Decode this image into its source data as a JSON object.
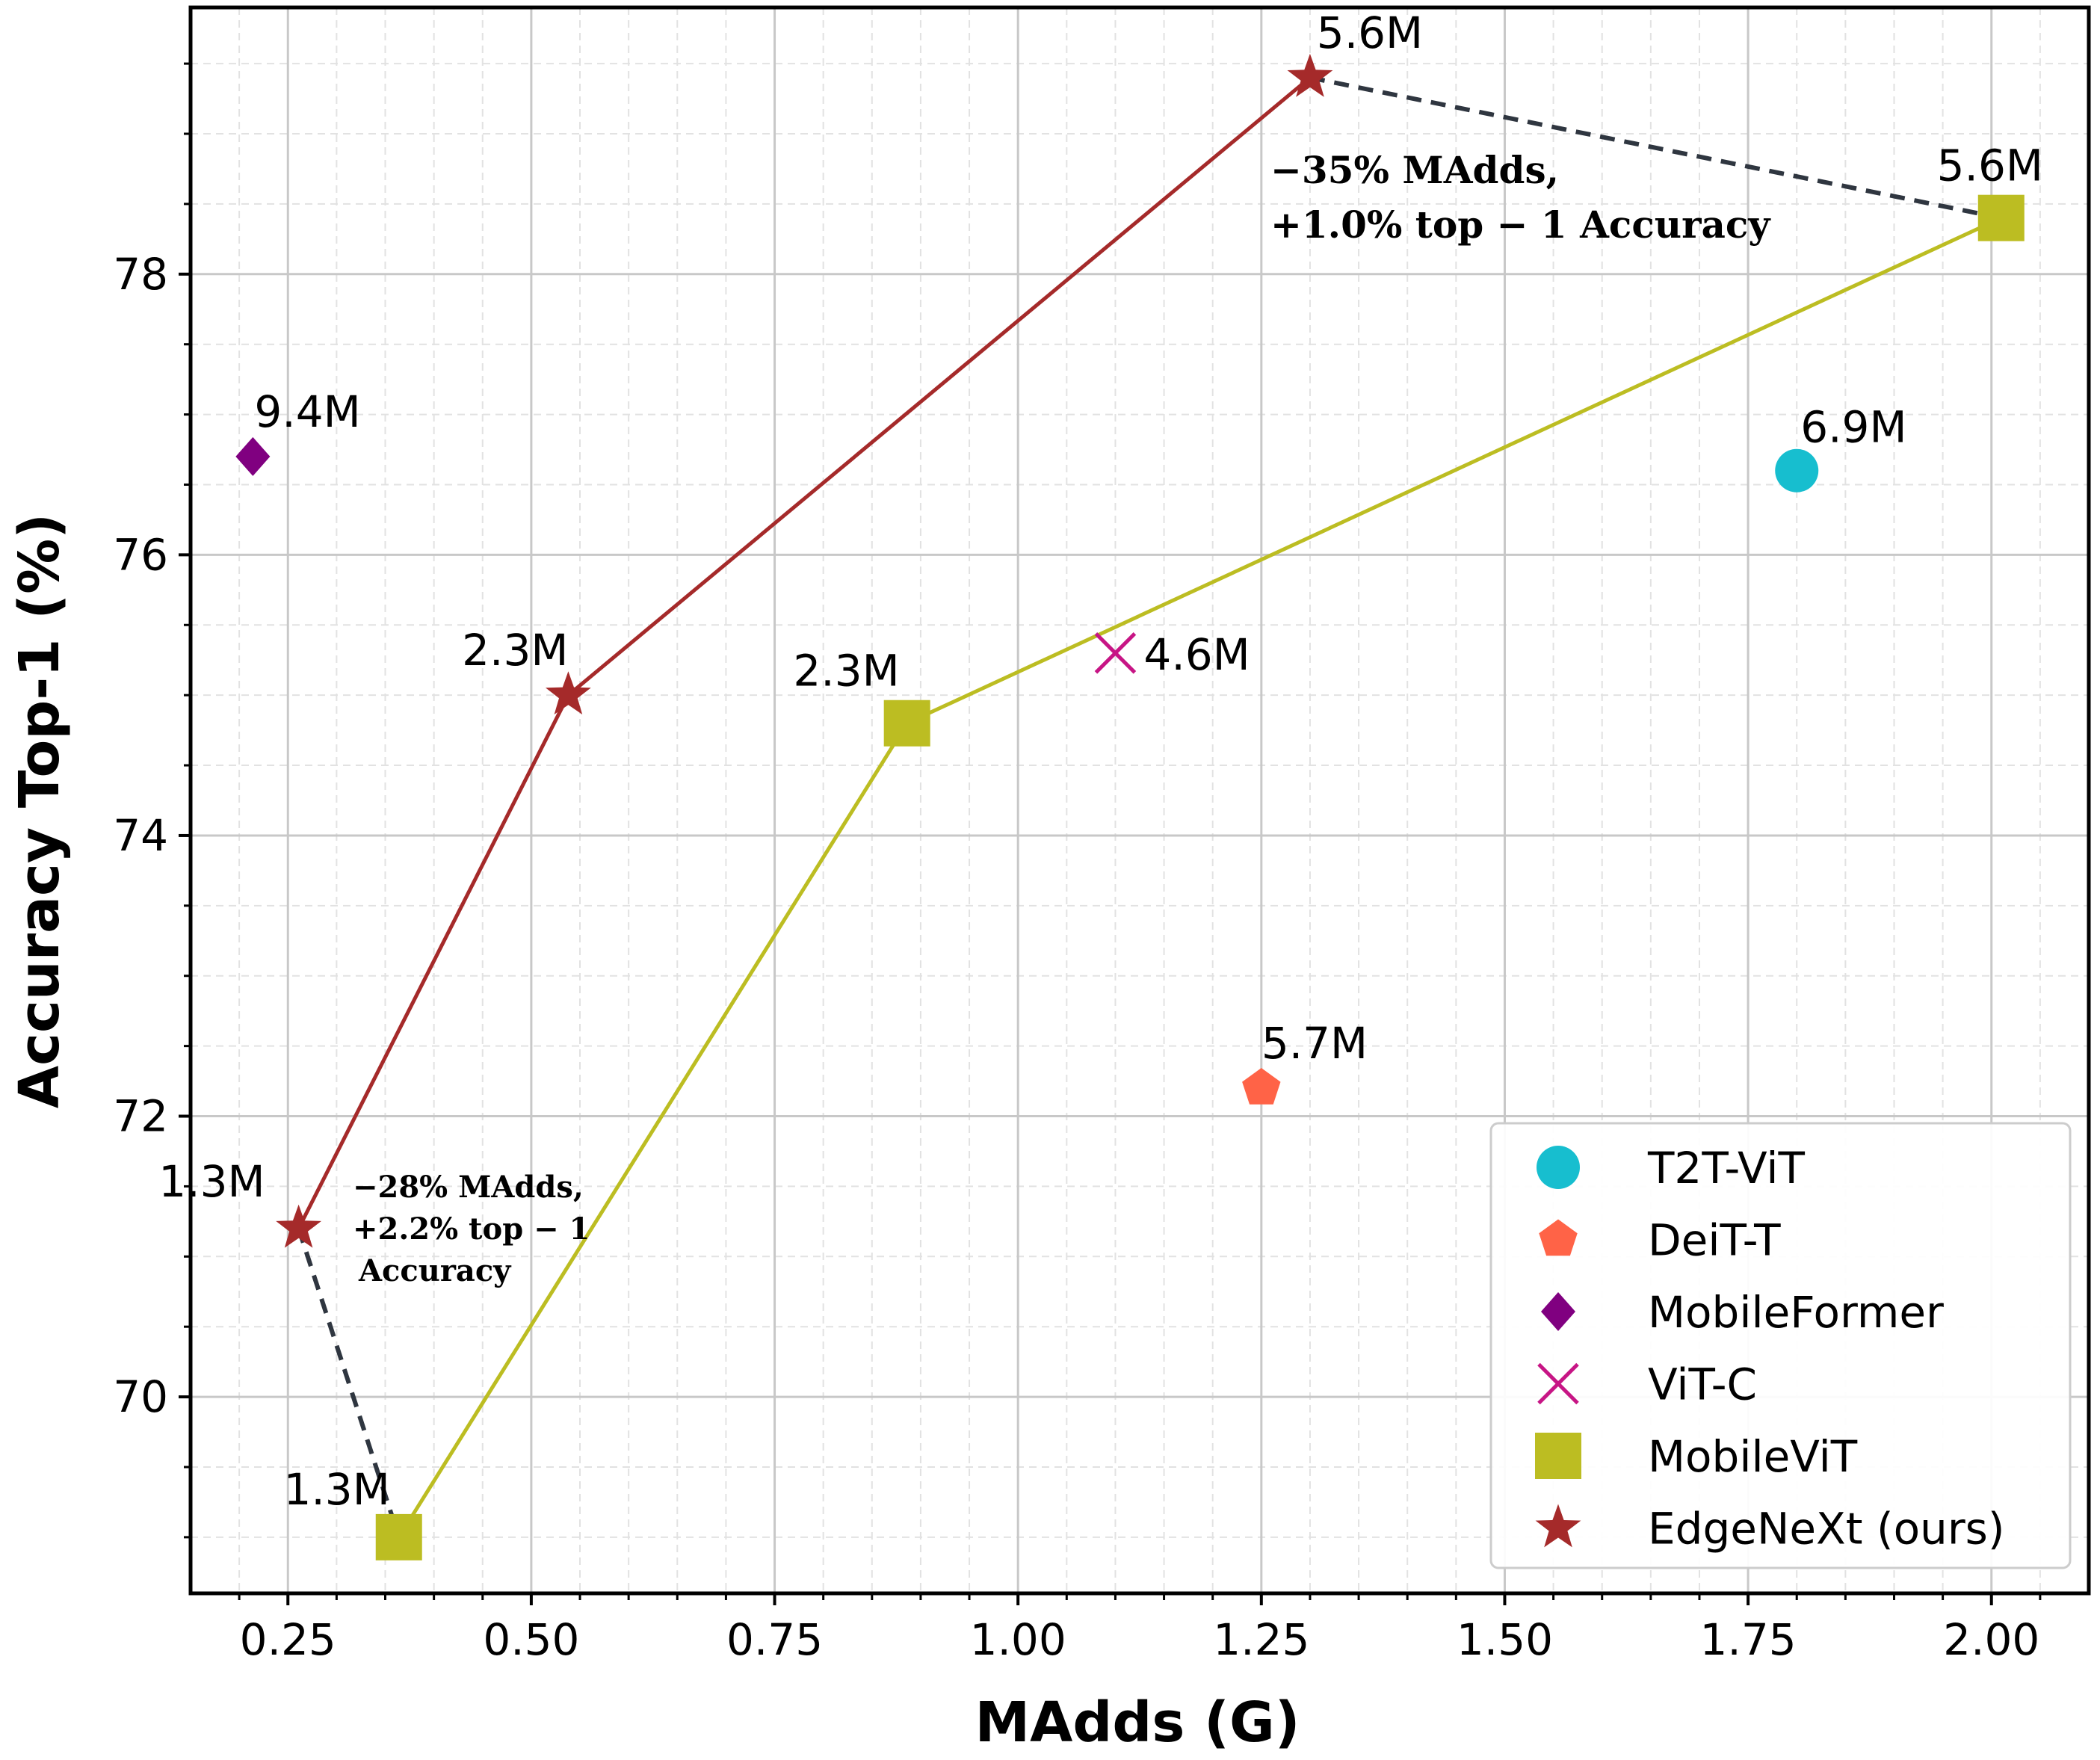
{
  "chart_data": {
    "type": "scatter",
    "title": "",
    "xlabel": "MAdds (G)",
    "ylabel": "Accuracy Top-1 (%)",
    "xlim": [
      0.15,
      2.1
    ],
    "ylim": [
      68.6,
      79.9
    ],
    "x_ticks": [
      0.25,
      0.5,
      0.75,
      1.0,
      1.25,
      1.5,
      1.75,
      2.0
    ],
    "x_tick_labels": [
      "0.25",
      "0.50",
      "0.75",
      "1.00",
      "1.25",
      "1.50",
      "1.75",
      "2.00"
    ],
    "y_ticks": [
      70,
      72,
      74,
      76,
      78
    ],
    "y_tick_labels": [
      "70",
      "72",
      "74",
      "76",
      "78"
    ],
    "grid": true,
    "legend_position": "bottom-right",
    "series": [
      {
        "name": "T2T-ViT",
        "marker": "circle",
        "color": "#17becf",
        "line": false,
        "points": [
          {
            "x": 1.8,
            "y": 76.6,
            "label": "6.9M"
          }
        ]
      },
      {
        "name": "DeiT-T",
        "marker": "pentagon",
        "color": "#ff6347",
        "line": false,
        "points": [
          {
            "x": 1.25,
            "y": 72.2,
            "label": "5.7M"
          }
        ]
      },
      {
        "name": "MobileFormer",
        "marker": "diamond",
        "color": "#800080",
        "line": false,
        "points": [
          {
            "x": 0.214,
            "y": 76.7,
            "label": "9.4M"
          }
        ]
      },
      {
        "name": "ViT-C",
        "marker": "x",
        "color": "#c71585",
        "line": false,
        "points": [
          {
            "x": 1.1,
            "y": 75.3,
            "label": "4.6M"
          }
        ]
      },
      {
        "name": "MobileViT",
        "marker": "square",
        "color": "#bcbd22",
        "line": true,
        "points": [
          {
            "x": 0.364,
            "y": 69.0,
            "label": "1.3M"
          },
          {
            "x": 0.886,
            "y": 74.8,
            "label": "2.3M"
          },
          {
            "x": 2.01,
            "y": 78.4,
            "label": "5.6M"
          }
        ]
      },
      {
        "name": "EdgeNeXt (ours)",
        "marker": "star",
        "color": "#a52a2a",
        "line": true,
        "points": [
          {
            "x": 0.261,
            "y": 71.2,
            "label": "1.3M"
          },
          {
            "x": 0.538,
            "y": 75.0,
            "label": "2.3M"
          },
          {
            "x": 1.3,
            "y": 79.4,
            "label": "5.6M"
          }
        ]
      }
    ],
    "annotations": [
      {
        "lines": [
          "−35% MAdds,",
          "+1.0% top − 1 Accuracy"
        ]
      },
      {
        "lines": [
          "−28% MAdds,",
          "+2.2% top − 1",
          "Accuracy"
        ]
      }
    ],
    "comparison_lines": [
      {
        "from": {
          "x": 1.3,
          "y": 79.4
        },
        "to": {
          "x": 2.01,
          "y": 78.4
        }
      },
      {
        "from": {
          "x": 0.261,
          "y": 71.2
        },
        "to": {
          "x": 0.364,
          "y": 69.0
        }
      }
    ]
  }
}
